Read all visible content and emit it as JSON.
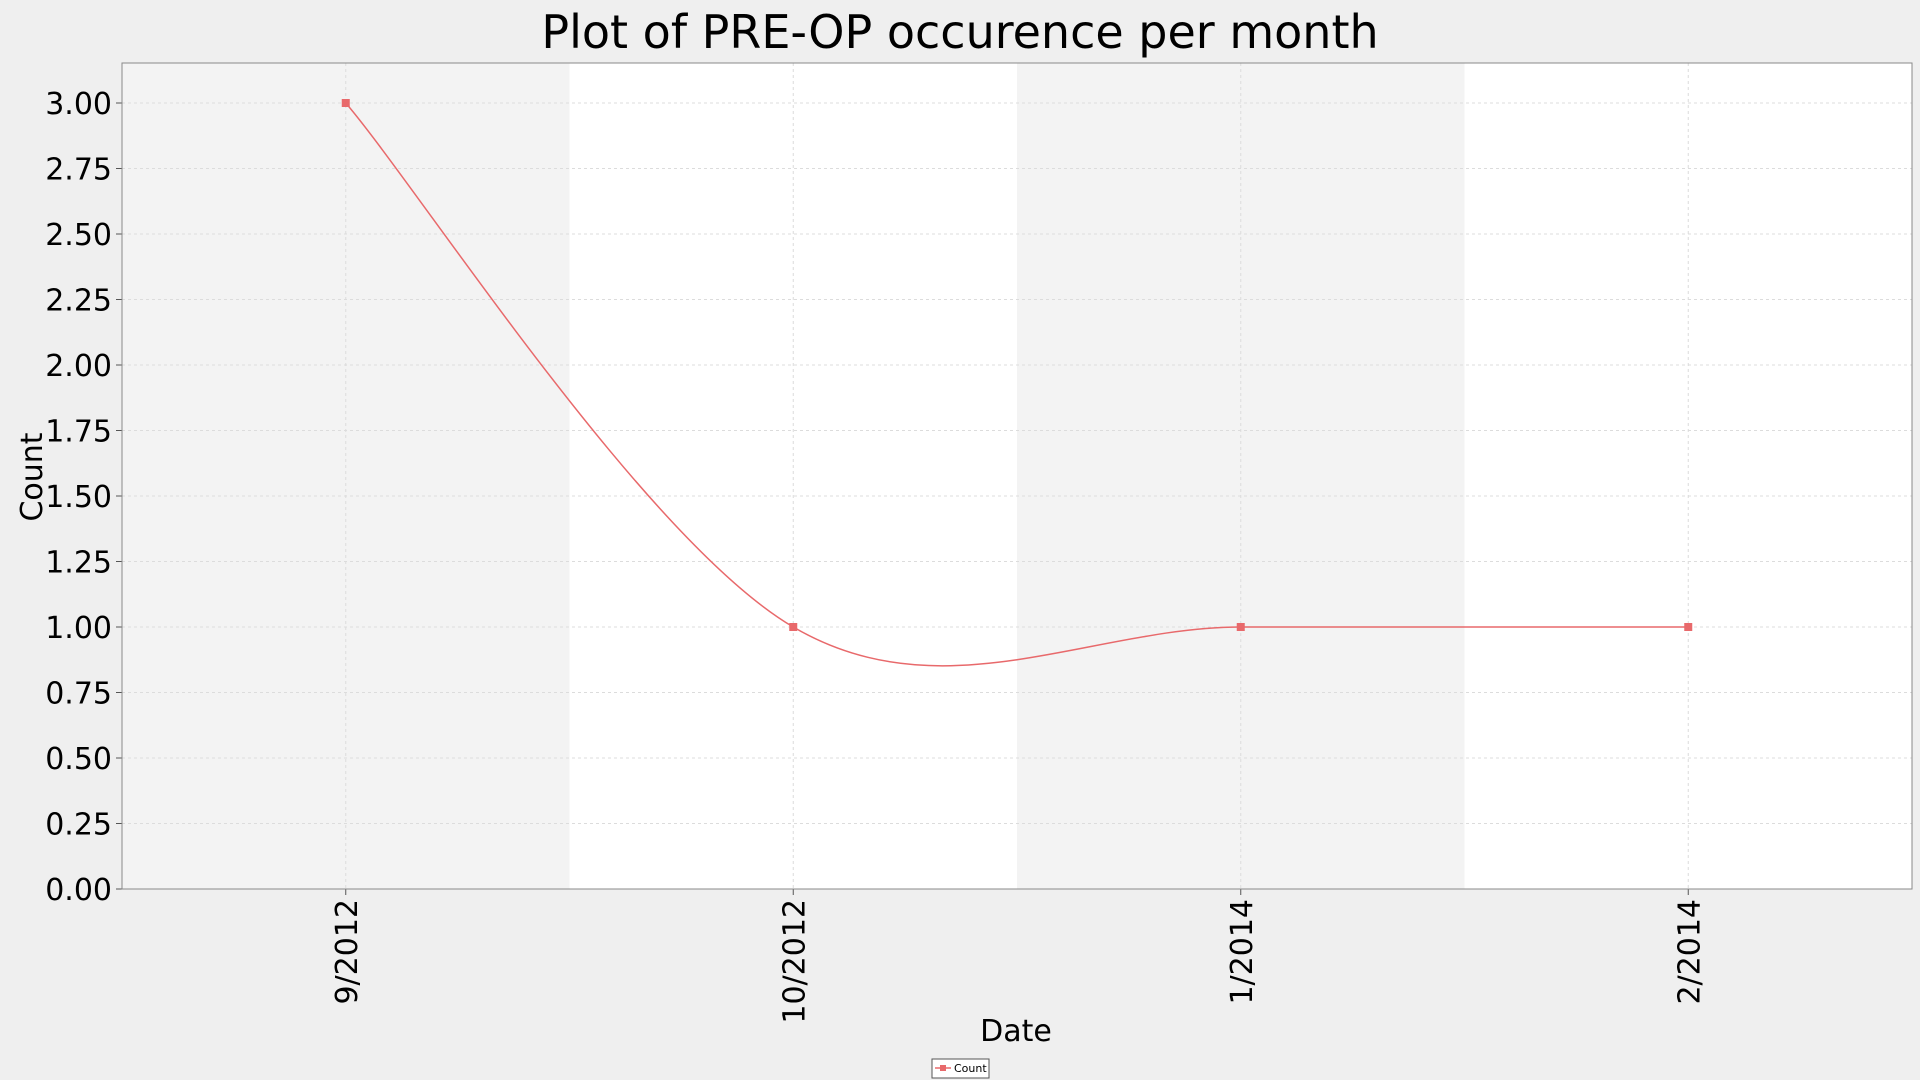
{
  "chart_data": {
    "type": "line",
    "title": "Plot of PRE-OP occurence per month",
    "xlabel": "Date",
    "ylabel": "Count",
    "categories": [
      "9/2012",
      "10/2012",
      "1/2014",
      "2/2014"
    ],
    "series": [
      {
        "name": "Count",
        "values": [
          3,
          1,
          1,
          1
        ],
        "color": "#e8696b"
      }
    ],
    "ylim": [
      0,
      3
    ],
    "yticks": [
      "0.00",
      "0.25",
      "0.50",
      "0.75",
      "1.00",
      "1.25",
      "1.50",
      "1.75",
      "2.00",
      "2.25",
      "2.50",
      "2.75",
      "3.00"
    ],
    "smooth": true,
    "grid": true,
    "band_colors": [
      "#f3f3f3",
      "#ffffff"
    ],
    "legend_position": "bottom-center"
  }
}
